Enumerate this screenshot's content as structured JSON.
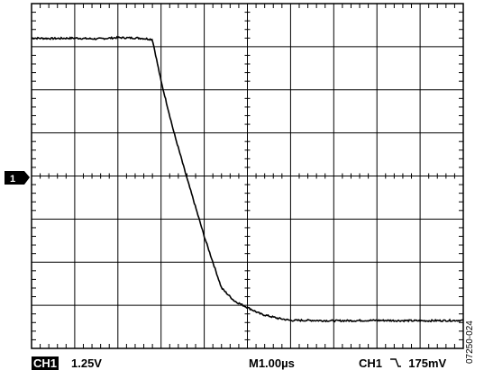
{
  "status": {
    "channel_badge": "CH1",
    "channel_scale": "1.25V",
    "timebase": "M1.00µs",
    "trigger_channel": "CH1",
    "trigger_slope_icon": "falling-edge-icon",
    "trigger_level": "175mV"
  },
  "marker_label": "1",
  "figure_id": "07250-024",
  "colors": {
    "trace": "#000000",
    "grid": "#000000",
    "background": "#ffffff"
  },
  "chart_data": {
    "type": "line",
    "title": "",
    "xlabel": "",
    "ylabel": "",
    "grid": true,
    "x_divisions": 10,
    "y_divisions": 8,
    "xlim": [
      0,
      10
    ],
    "ylim": [
      -4,
      4
    ],
    "series": [
      {
        "x": [
          0,
          0.5,
          1.0,
          1.5,
          2.0,
          2.5,
          2.8,
          3.0,
          3.3,
          3.6,
          4.0,
          4.4,
          4.7,
          5.0,
          5.3,
          5.7,
          6.0,
          6.5,
          7.0,
          8.0,
          9.0,
          10.0
        ],
        "y": [
          3.2,
          3.19,
          3.2,
          3.18,
          3.21,
          3.2,
          3.17,
          2.2,
          1.0,
          -0.05,
          -1.4,
          -2.6,
          -2.9,
          -3.05,
          -3.2,
          -3.3,
          -3.35,
          -3.35,
          -3.36,
          -3.35,
          -3.36,
          -3.35
        ]
      }
    ]
  }
}
